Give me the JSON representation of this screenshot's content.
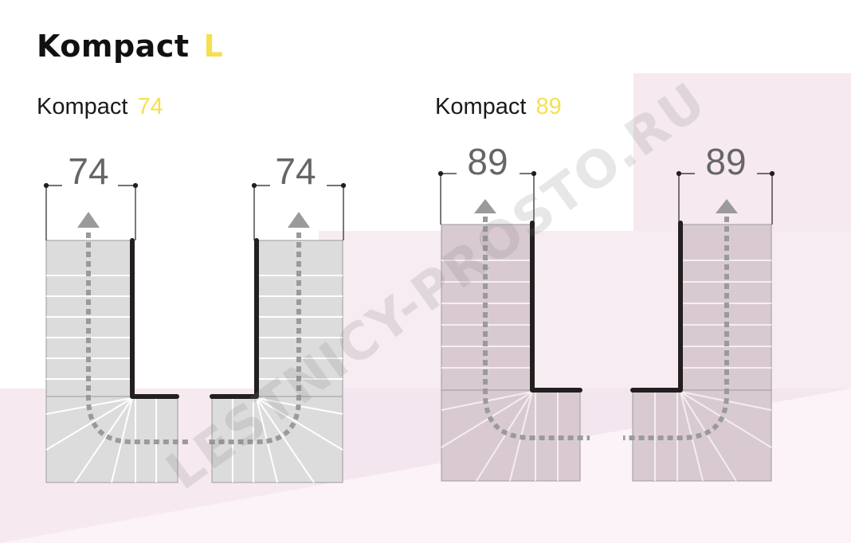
{
  "title": {
    "main": "Kompact",
    "accent": "L"
  },
  "variants": [
    {
      "name": "Kompact",
      "width": "74"
    },
    {
      "name": "Kompact",
      "width": "89"
    }
  ],
  "dimensions": [
    "74",
    "74",
    "89",
    "89"
  ],
  "watermark": "LESTNICY-PROSTO.RU",
  "colors": {
    "accent": "#f6e04f",
    "tread": "#dcdcdc",
    "tread_pink": "#d9cad1",
    "handrail": "#231f20",
    "arrow": "#9a9a9a",
    "background_pink": "#f4e4ec"
  }
}
